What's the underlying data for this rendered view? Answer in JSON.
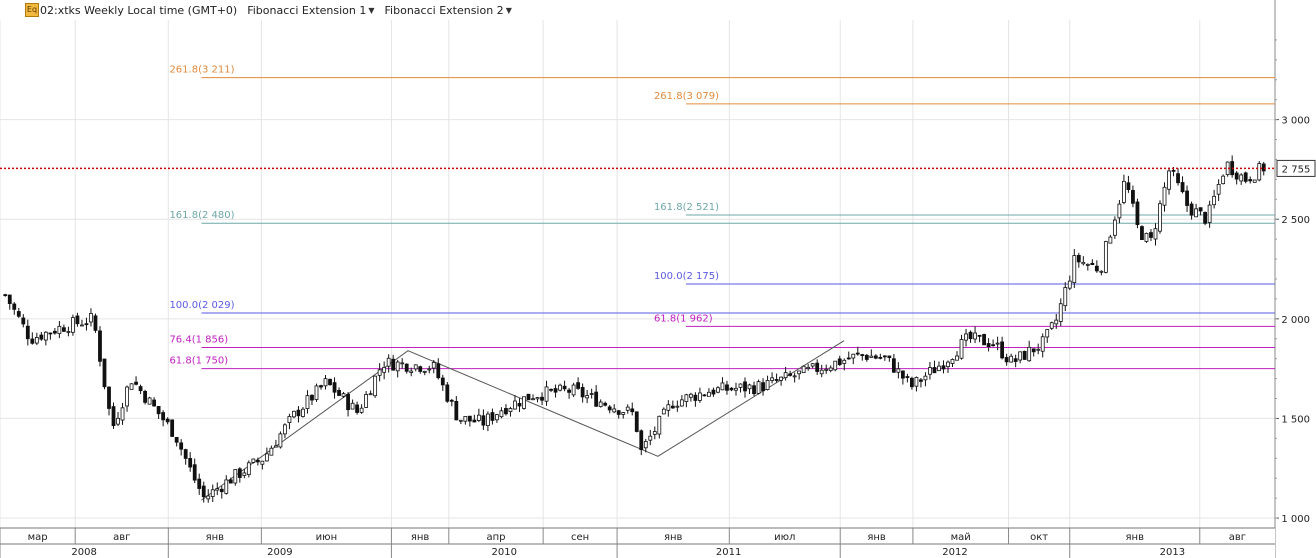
{
  "toolbar": {
    "icon_text": "Eq",
    "symbol_label": "2502:xtks Weekly Local time (GMT+0)",
    "indicator_1": "Fibonacci Extension 1",
    "indicator_2": "Fibonacci Extension 2"
  },
  "price_label": "2 755",
  "colors": {
    "up_candle": "#ffffff",
    "down_candle": "#111111",
    "current_price_line": "#cc0000",
    "orange": "#e08a3c",
    "teal": "#6fa7a7",
    "blue": "#5a5ae6",
    "magenta": "#c020c0"
  },
  "chart_data": {
    "type": "candlestick",
    "y_scale": "linear",
    "ylim": [
      950,
      3500
    ],
    "yticks": [
      {
        "value": 1000,
        "label": "1 000"
      },
      {
        "value": 1500,
        "label": "1 500"
      },
      {
        "value": 2000,
        "label": "2 000"
      },
      {
        "value": 2500,
        "label": "2 500"
      },
      {
        "value": 3000,
        "label": "3 000"
      }
    ],
    "x_months": [
      {
        "label": "мар",
        "x_frac": 0.0
      },
      {
        "label": "авг",
        "x_frac": 0.059
      },
      {
        "label": "янв",
        "x_frac": 0.132
      },
      {
        "label": "июн",
        "x_frac": 0.205
      },
      {
        "label": "янв",
        "x_frac": 0.307
      },
      {
        "label": "апр",
        "x_frac": 0.352
      },
      {
        "label": "сен",
        "x_frac": 0.426
      },
      {
        "label": "янв",
        "x_frac": 0.484
      },
      {
        "label": "июл",
        "x_frac": 0.572
      },
      {
        "label": "янв",
        "x_frac": 0.659
      },
      {
        "label": "май",
        "x_frac": 0.716
      },
      {
        "label": "окт",
        "x_frac": 0.791
      },
      {
        "label": "янв",
        "x_frac": 0.839
      },
      {
        "label": "авг",
        "x_frac": 0.941
      }
    ],
    "x_years": [
      {
        "label": "2008",
        "start_frac": 0.0,
        "end_frac": 0.132
      },
      {
        "label": "2009",
        "start_frac": 0.132,
        "end_frac": 0.307
      },
      {
        "label": "2010",
        "start_frac": 0.307,
        "end_frac": 0.484
      },
      {
        "label": "2011",
        "start_frac": 0.484,
        "end_frac": 0.659
      },
      {
        "label": "2012",
        "start_frac": 0.659,
        "end_frac": 0.839
      },
      {
        "label": "2013",
        "start_frac": 0.839,
        "end_frac": 1.0
      }
    ],
    "current_price": 2755,
    "fib_levels": [
      {
        "label": "261.8(3 211)",
        "value": 3211,
        "color": "#e08a3c",
        "start_frac": 0.158
      },
      {
        "label": "161.8(2 480)",
        "value": 2480,
        "color": "#6fa7a7",
        "start_frac": 0.158
      },
      {
        "label": "100.0(2 029)",
        "value": 2029,
        "color": "#5a5ae6",
        "start_frac": 0.158
      },
      {
        "label": "76.4(1 856)",
        "value": 1856,
        "color": "#c020c0",
        "start_frac": 0.158
      },
      {
        "label": "61.8(1 750)",
        "value": 1750,
        "color": "#c020c0",
        "start_frac": 0.158
      },
      {
        "label": "261.8(3 079)",
        "value": 3079,
        "color": "#e08a3c",
        "start_frac": 0.538
      },
      {
        "label": "161.8(2 521)",
        "value": 2521,
        "color": "#6fa7a7",
        "start_frac": 0.538
      },
      {
        "label": "100.0(2 175)",
        "value": 2175,
        "color": "#5a5ae6",
        "start_frac": 0.538
      },
      {
        "label": "61.8(1 962)",
        "value": 1962,
        "color": "#c020c0",
        "start_frac": 0.538
      }
    ],
    "fib_pivots": [
      {
        "x_frac": 0.158,
        "value": 1090
      },
      {
        "x_frac": 0.32,
        "value": 1840
      },
      {
        "x_frac": 0.516,
        "value": 1310
      },
      {
        "x_frac": 0.662,
        "value": 1890
      }
    ],
    "price_anchors": [
      [
        0.0,
        2120
      ],
      [
        0.02,
        1900
      ],
      [
        0.045,
        1960
      ],
      [
        0.07,
        2000
      ],
      [
        0.085,
        1450
      ],
      [
        0.1,
        1700
      ],
      [
        0.12,
        1540
      ],
      [
        0.135,
        1420
      ],
      [
        0.15,
        1200
      ],
      [
        0.158,
        1100
      ],
      [
        0.18,
        1200
      ],
      [
        0.205,
        1300
      ],
      [
        0.23,
        1520
      ],
      [
        0.255,
        1680
      ],
      [
        0.28,
        1530
      ],
      [
        0.3,
        1780
      ],
      [
        0.32,
        1770
      ],
      [
        0.34,
        1760
      ],
      [
        0.36,
        1500
      ],
      [
        0.38,
        1480
      ],
      [
        0.395,
        1550
      ],
      [
        0.42,
        1620
      ],
      [
        0.45,
        1640
      ],
      [
        0.475,
        1580
      ],
      [
        0.5,
        1520
      ],
      [
        0.505,
        1330
      ],
      [
        0.53,
        1580
      ],
      [
        0.56,
        1640
      ],
      [
        0.6,
        1660
      ],
      [
        0.64,
        1740
      ],
      [
        0.68,
        1820
      ],
      [
        0.7,
        1800
      ],
      [
        0.72,
        1660
      ],
      [
        0.745,
        1780
      ],
      [
        0.765,
        1900
      ],
      [
        0.785,
        1880
      ],
      [
        0.8,
        1780
      ],
      [
        0.825,
        1880
      ],
      [
        0.835,
        1990
      ],
      [
        0.85,
        2300
      ],
      [
        0.87,
        2250
      ],
      [
        0.88,
        2480
      ],
      [
        0.89,
        2700
      ],
      [
        0.9,
        2450
      ],
      [
        0.91,
        2380
      ],
      [
        0.925,
        2750
      ],
      [
        0.94,
        2560
      ],
      [
        0.955,
        2500
      ],
      [
        0.97,
        2780
      ],
      [
        0.985,
        2700
      ],
      [
        1.0,
        2760
      ]
    ]
  }
}
